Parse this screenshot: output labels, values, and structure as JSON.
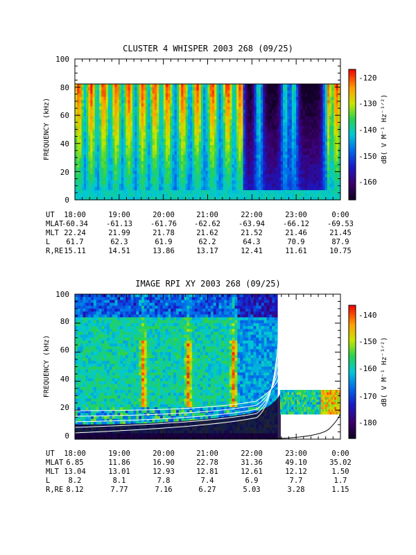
{
  "charts": [
    {
      "title": "CLUSTER 4 WHISPER 2003 268 (09/25)",
      "ylabel": "FREQUENCY (kHz)",
      "y_ticks": [
        "0",
        "20",
        "40",
        "60",
        "80",
        "100"
      ],
      "colorbar_label": "dB( V M⁻¹ Hz⁻¹ᐟ²)",
      "colorbar_ticks": [
        "-120",
        "-130",
        "-140",
        "-150",
        "-160"
      ],
      "ephemeris_labels": [
        "UT",
        "MLAT",
        "MLT",
        "L",
        "R,RE"
      ],
      "ephemeris": [
        [
          "18:00",
          "19:00",
          "20:00",
          "21:00",
          "22:00",
          "23:00",
          "0:00"
        ],
        [
          "-60.34",
          "-61.13",
          "-61.76",
          "-62.62",
          "-63.94",
          "-66.12",
          "-69.53"
        ],
        [
          "22.24",
          "21.99",
          "21.78",
          "21.62",
          "21.52",
          "21.46",
          "21.45"
        ],
        [
          "61.7",
          "62.3",
          "61.9",
          "62.2",
          "64.3",
          "70.9",
          "87.9"
        ],
        [
          "15.11",
          "14.51",
          "13.86",
          "13.17",
          "12.41",
          "11.61",
          "10.75"
        ]
      ]
    },
    {
      "title": "IMAGE RPI XY 2003 268 (09/25)",
      "ylabel": "FREQUENCY (kHz)",
      "y_ticks": [
        "0",
        "20",
        "40",
        "60",
        "80",
        "100"
      ],
      "colorbar_label": "dB( V M⁻¹ Hz⁻¹ᐟ²)",
      "colorbar_ticks": [
        "-140",
        "-150",
        "-160",
        "-170",
        "-180"
      ],
      "ephemeris_labels": [
        "UT",
        "MLAT",
        "MLT",
        "L",
        "R,RE"
      ],
      "ephemeris": [
        [
          "18:00",
          "19:00",
          "20:00",
          "21:00",
          "22:00",
          "23:00",
          "0:00"
        ],
        [
          "6.85",
          "11.86",
          "16.90",
          "22.78",
          "31.36",
          "49.10",
          "35.02"
        ],
        [
          "13.04",
          "13.01",
          "12.93",
          "12.81",
          "12.61",
          "12.12",
          "1.50"
        ],
        [
          "8.2",
          "8.1",
          "7.8",
          "7.4",
          "6.9",
          "7.7",
          "1.7"
        ],
        [
          "8.12",
          "7.77",
          "7.16",
          "6.27",
          "5.03",
          "3.28",
          "1.15"
        ]
      ]
    }
  ],
  "chart_data": [
    {
      "type": "heatmap",
      "title": "CLUSTER 4 WHISPER 2003 268 (09/25)",
      "xlabel": "UT",
      "ylabel": "FREQUENCY (kHz)",
      "x_range": [
        "18:00",
        "0:00"
      ],
      "x_ticks": [
        "18:00",
        "19:00",
        "20:00",
        "21:00",
        "22:00",
        "23:00",
        "0:00"
      ],
      "ylim": [
        0,
        100
      ],
      "y_ticks": [
        0,
        20,
        40,
        60,
        80,
        100
      ],
      "data_freq_max_khz": 80,
      "colorbar_range_db": [
        -167,
        -117
      ],
      "colorbar_ticks": [
        -120,
        -130,
        -140,
        -150,
        -160
      ],
      "colorbar_label": "dB( V M⁻¹ Hz⁻¹ᐟ²)"
    },
    {
      "type": "heatmap",
      "title": "IMAGE RPI XY 2003 268 (09/25)",
      "xlabel": "UT",
      "ylabel": "FREQUENCY (kHz)",
      "x_range": [
        "18:00",
        "0:00"
      ],
      "x_ticks": [
        "18:00",
        "19:00",
        "20:00",
        "21:00",
        "22:00",
        "23:00",
        "0:00"
      ],
      "ylim": [
        0,
        100
      ],
      "y_ticks": [
        0,
        20,
        40,
        60,
        80,
        100
      ],
      "colorbar_range_db": [
        -186,
        -133
      ],
      "colorbar_ticks": [
        -140,
        -150,
        -160,
        -170,
        -180
      ],
      "colorbar_label": "dB( V M⁻¹ Hz⁻¹ᐟ²)",
      "white_curves": "several plasma-frequency curves rising steeply toward ~21:50 UT, plus one black curve to 0:00 UT"
    }
  ]
}
